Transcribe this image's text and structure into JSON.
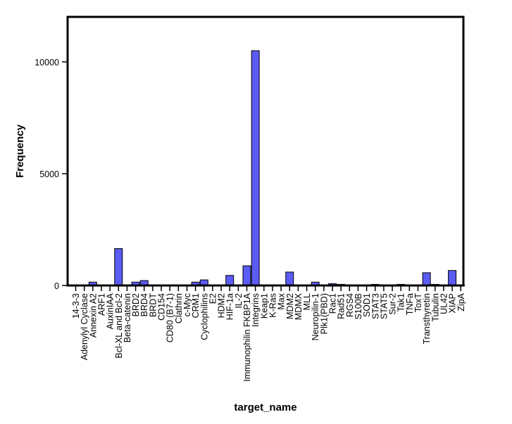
{
  "chart_data": {
    "type": "bar",
    "xlabel": "target_name",
    "ylabel": "Frequency",
    "ylim": [
      0,
      12000
    ],
    "yticks": [
      0,
      5000,
      10000
    ],
    "grid": false,
    "legend": "none",
    "bar_color": "#5b5bf5",
    "bar_edge_color": "#000000",
    "categories": [
      "14-3-3",
      "Adenylyl Cyclase",
      "Annexin A2",
      "ARF1",
      "AuxinIAA",
      "Bcl-XL and Bcl-2",
      "Beta-catenin",
      "BRD2",
      "BRD4",
      "BRDT",
      "CD154",
      "CD80 (B7-1)",
      "Clathrin",
      "c-Myc",
      "CRM1",
      "Cyclophilins",
      "E2",
      "HDM2",
      "HIF-1a",
      "IL-2",
      "Immunophilin FKBP1A",
      "Integrins",
      "Keap1",
      "K-Ras",
      "Max",
      "MDM2",
      "MDMX",
      "MLL",
      "Neuropilin-1",
      "Plk1(PBD)",
      "Rac1",
      "Rad51",
      "RGS4",
      "S100B",
      "SOD1",
      "STAT3",
      "STAT5",
      "Sur-2",
      "Tak1",
      "TNFa",
      "ToxT",
      "Transthyretin",
      "Tubulin",
      "UL42",
      "XIAP",
      "ZipA"
    ],
    "values": [
      5,
      10,
      150,
      10,
      5,
      1650,
      10,
      150,
      220,
      10,
      5,
      5,
      10,
      10,
      150,
      250,
      10,
      10,
      450,
      10,
      880,
      10500,
      10,
      10,
      10,
      600,
      10,
      10,
      150,
      10,
      80,
      50,
      10,
      10,
      10,
      50,
      10,
      10,
      50,
      10,
      10,
      570,
      50,
      10,
      670,
      10
    ]
  }
}
